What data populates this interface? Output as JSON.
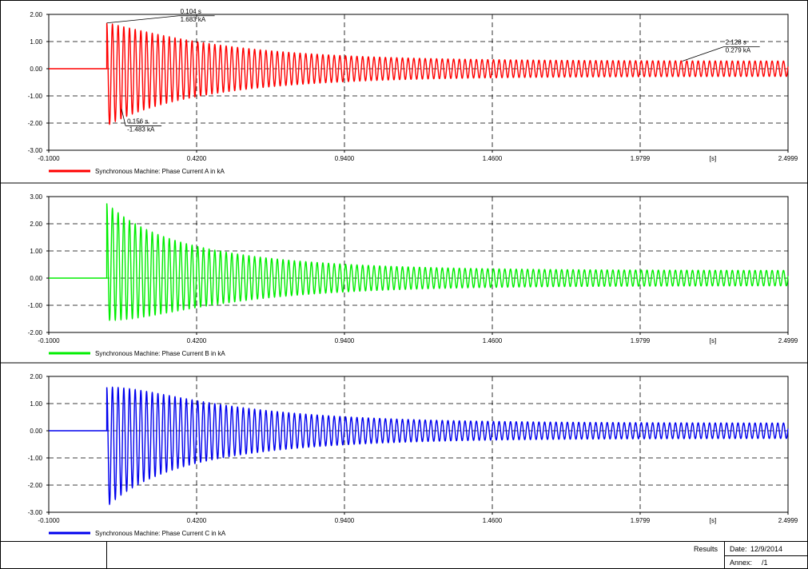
{
  "footer": {
    "results_label": "Results",
    "date_label": "Date:",
    "date_value": "12/9/2014",
    "annex_label": "Annex:",
    "annex_value": "/1"
  },
  "chart_data": [
    {
      "type": "line",
      "series": [
        {
          "name": "Synchronous Machine: Phase Current A in kA",
          "color": "#ff0000"
        }
      ],
      "x_unit_label": "[s]",
      "xlim": [
        -0.1,
        2.4999
      ],
      "ylim": [
        -3.0,
        2.0
      ],
      "x_tick_labels": [
        "-0.1000",
        "0.4200",
        "0.9400",
        "1.4600",
        "1.9799",
        "2.4999"
      ],
      "y_tick_labels": [
        "2.00",
        "1.00",
        "0.00",
        "-1.00",
        "-2.00",
        "-3.00"
      ],
      "signal": {
        "fault_time": 0.104,
        "first_peak": 1.683,
        "first_trough": -2.1,
        "steady_amplitude": 0.279
      },
      "annotations": [
        {
          "x": 0.104,
          "y": 1.683,
          "time_text": "0.104 s",
          "value_text": "1.683 kA"
        },
        {
          "x": 0.156,
          "y": -1.483,
          "time_text": "0.156 s",
          "value_text": "-1.483 kA"
        },
        {
          "x": 2.128,
          "y": 0.279,
          "time_text": "2.128 s",
          "value_text": "0.279 kA"
        }
      ],
      "grid": true,
      "legend_position": "bottom-left"
    },
    {
      "type": "line",
      "series": [
        {
          "name": "Synchronous Machine: Phase Current B in kA",
          "color": "#00ee00"
        }
      ],
      "x_unit_label": "[s]",
      "xlim": [
        -0.1,
        2.4999
      ],
      "ylim": [
        -2.0,
        3.0
      ],
      "x_tick_labels": [
        "-0.1000",
        "0.4200",
        "0.9400",
        "1.4600",
        "1.9799",
        "2.4999"
      ],
      "y_tick_labels": [
        "3.00",
        "2.00",
        "1.00",
        "0.00",
        "-1.00",
        "-2.00"
      ],
      "signal": {
        "fault_time": 0.104,
        "first_peak": 2.75,
        "first_trough": -1.55,
        "steady_amplitude": 0.279
      },
      "annotations": [],
      "grid": true,
      "legend_position": "bottom-left"
    },
    {
      "type": "line",
      "series": [
        {
          "name": "Synchronous Machine: Phase Current C in kA",
          "color": "#0000ee"
        }
      ],
      "x_unit_label": "[s]",
      "xlim": [
        -0.1,
        2.4999
      ],
      "ylim": [
        -3.0,
        2.0
      ],
      "x_tick_labels": [
        "-0.1000",
        "0.4200",
        "0.9400",
        "1.4600",
        "1.9799",
        "2.4999"
      ],
      "y_tick_labels": [
        "2.00",
        "1.00",
        "0.00",
        "-1.00",
        "-2.00",
        "-3.00"
      ],
      "signal": {
        "fault_time": 0.104,
        "first_peak": 1.6,
        "first_trough": -2.8,
        "steady_amplitude": 0.279
      },
      "annotations": [],
      "grid": true,
      "legend_position": "bottom-left"
    }
  ]
}
